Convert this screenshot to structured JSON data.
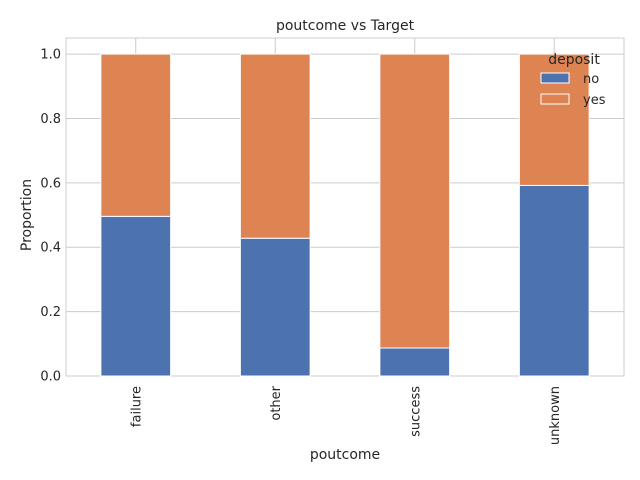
{
  "chart_data": {
    "type": "bar",
    "stacked": true,
    "title": "poutcome vs Target",
    "xlabel": "poutcome",
    "ylabel": "Proportion",
    "categories": [
      "failure",
      "other",
      "success",
      "unknown"
    ],
    "series": [
      {
        "name": "no",
        "values": [
          0.496,
          0.428,
          0.087,
          0.592
        ],
        "color": "#4c72b0"
      },
      {
        "name": "yes",
        "values": [
          0.504,
          0.572,
          0.913,
          0.408
        ],
        "color": "#dd8452"
      }
    ],
    "ylim": [
      0,
      1.05
    ],
    "yticks": [
      "0.0",
      "0.2",
      "0.4",
      "0.6",
      "0.8",
      "1.0"
    ],
    "grid": true,
    "legend": {
      "title": "deposit",
      "placement": "top-right"
    }
  }
}
